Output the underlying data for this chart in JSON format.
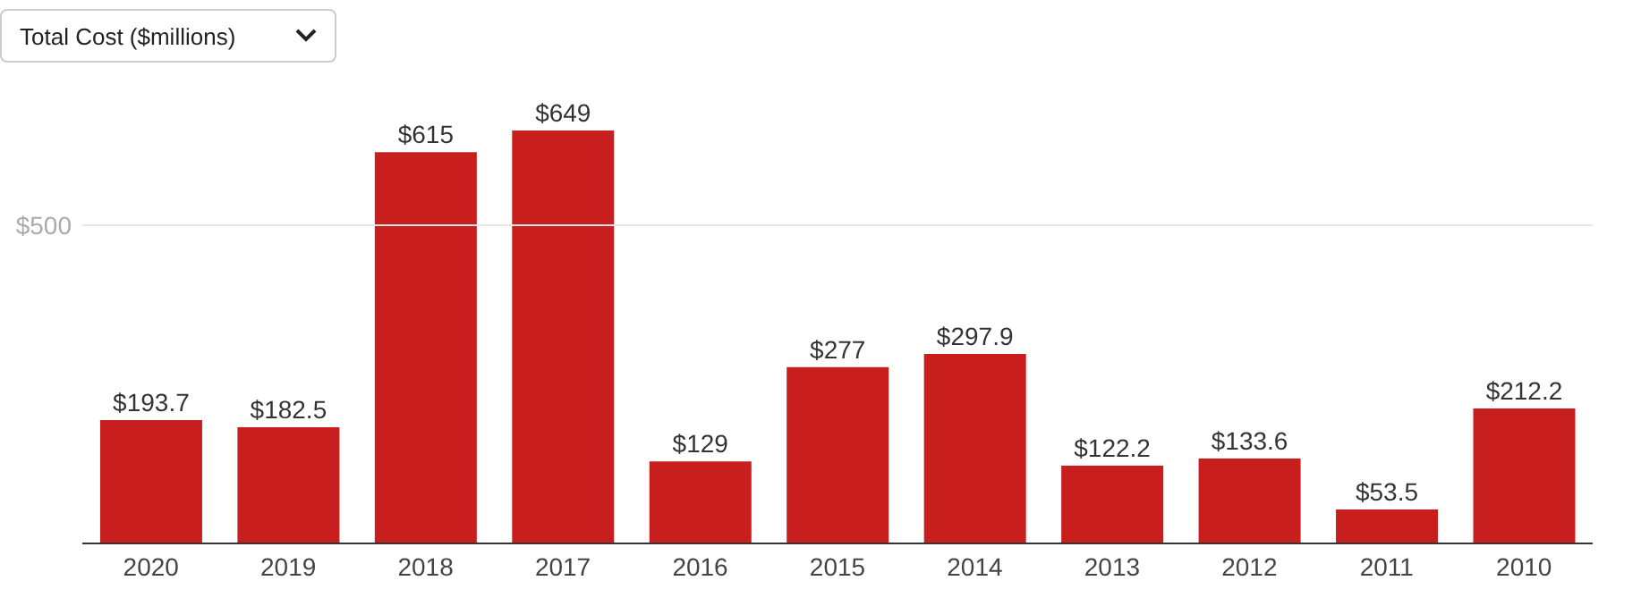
{
  "chart_data": {
    "type": "bar",
    "title": "Total Cost ($millions)",
    "categories": [
      "2020",
      "2019",
      "2018",
      "2017",
      "2016",
      "2015",
      "2014",
      "2013",
      "2012",
      "2011",
      "2010"
    ],
    "values": [
      193.7,
      182.5,
      615,
      649,
      129,
      277,
      297.9,
      122.2,
      133.6,
      53.5,
      212.2
    ],
    "value_labels": [
      "$193.7",
      "$182.5",
      "$615",
      "$649",
      "$129",
      "$277",
      "$297.9",
      "$122.2",
      "$133.6",
      "$53.5",
      "$212.2"
    ],
    "color": "#c81e1e",
    "ref_lines": [
      {
        "axis": "y",
        "value": 500,
        "label": "$500",
        "color": "#e6e6e6"
      }
    ]
  }
}
